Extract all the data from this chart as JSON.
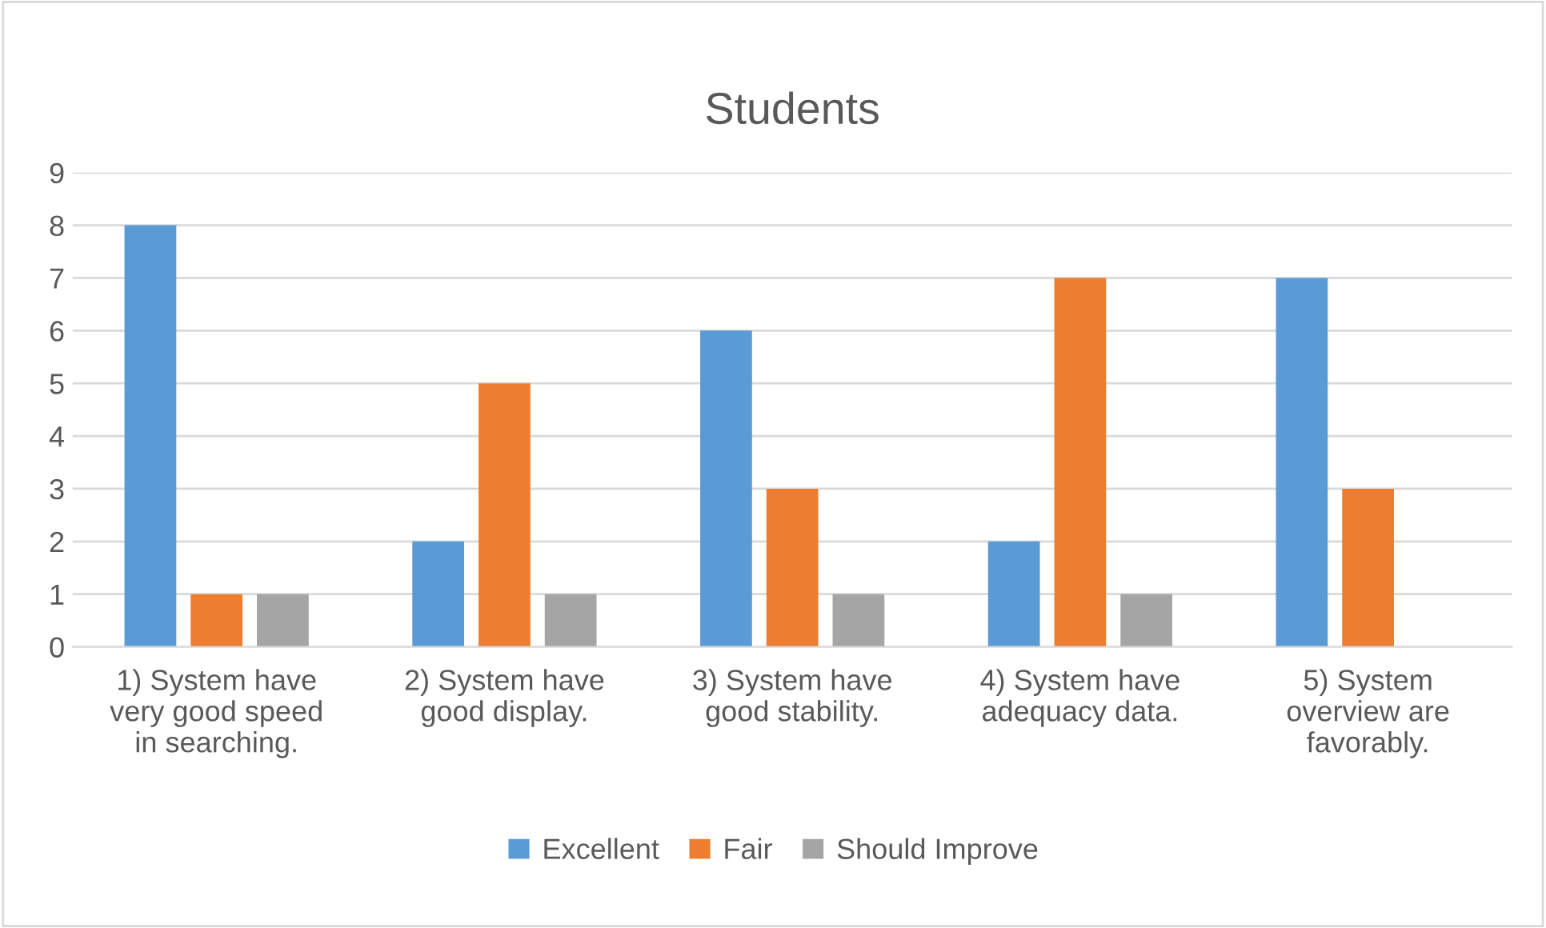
{
  "chart_data": {
    "type": "bar",
    "title": "Students",
    "categories": [
      "1) System have\nvery good speed\nin searching.",
      "2) System have\ngood display.",
      "3) System have\ngood stability.",
      "4) System have\nadequacy data.",
      "5) System\noverview are\nfavorably."
    ],
    "series": [
      {
        "name": "Excellent",
        "color": "#5b9bd5",
        "values": [
          8,
          2,
          6,
          2,
          7
        ]
      },
      {
        "name": "Fair",
        "color": "#ed7d31",
        "values": [
          1,
          5,
          3,
          7,
          3
        ]
      },
      {
        "name": "Should Improve",
        "color": "#a5a5a5",
        "values": [
          1,
          1,
          1,
          1,
          0
        ]
      }
    ],
    "ylim": [
      0,
      9
    ],
    "yticks": [
      0,
      1,
      2,
      3,
      4,
      5,
      6,
      7,
      8,
      9
    ],
    "grid": "y",
    "legend": "bottom"
  }
}
